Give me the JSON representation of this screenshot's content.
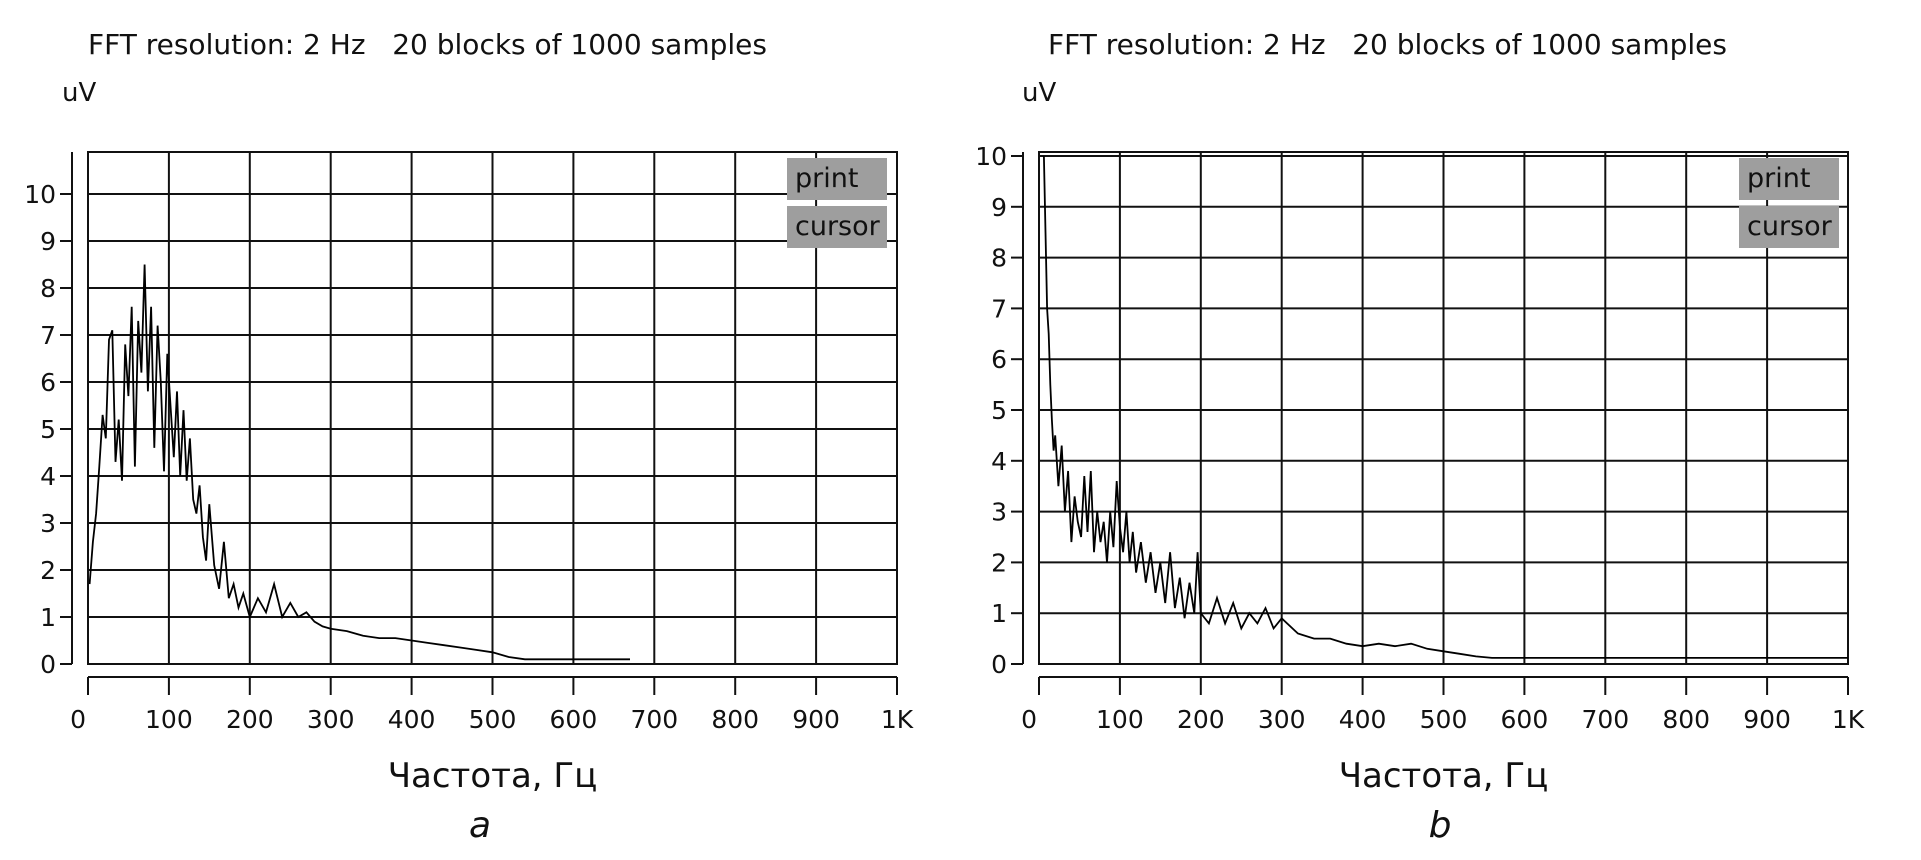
{
  "chart_data": [
    {
      "type": "line",
      "panel_label": "a",
      "header": "FFT resolution: 2 Hz   20 blocks of 1000 samples",
      "ylabel": "uV",
      "xlabel": "Частота, Гц",
      "xlim": [
        0,
        1000
      ],
      "ylim": [
        0,
        10.5
      ],
      "x_ticks": [
        0,
        100,
        200,
        300,
        400,
        500,
        600,
        700,
        800,
        900,
        1000
      ],
      "x_tick_labels": [
        "0",
        "100",
        "200",
        "300",
        "400",
        "500",
        "600",
        "700",
        "800",
        "900",
        "1K"
      ],
      "y_ticks": [
        0,
        1,
        2,
        3,
        4,
        5,
        6,
        7,
        8,
        9,
        10
      ],
      "y_tick_labels": [
        "0",
        "1",
        "2",
        "3",
        "4",
        "5",
        "6",
        "7",
        "8",
        "9",
        "10"
      ],
      "grid": true,
      "buttons": [
        "print",
        "cursor"
      ],
      "series": [
        {
          "x": [
            2,
            6,
            10,
            14,
            18,
            22,
            26,
            30,
            34,
            38,
            42,
            46,
            50,
            54,
            58,
            62,
            66,
            70,
            74,
            78,
            82,
            86,
            90,
            94,
            98,
            102,
            106,
            110,
            114,
            118,
            122,
            126,
            130,
            134,
            138,
            142,
            146,
            150,
            156,
            162,
            168,
            174,
            180,
            186,
            192,
            200,
            210,
            220,
            230,
            240,
            250,
            260,
            270,
            280,
            290,
            300,
            320,
            340,
            360,
            380,
            400,
            420,
            440,
            460,
            480,
            500,
            520,
            540,
            560,
            600,
            640,
            670
          ],
          "y": [
            1.7,
            2.6,
            3.2,
            4.2,
            5.3,
            4.8,
            6.9,
            7.1,
            4.3,
            5.2,
            3.9,
            6.8,
            5.7,
            7.6,
            4.2,
            7.3,
            6.2,
            8.5,
            5.8,
            7.6,
            4.6,
            7.2,
            6.0,
            4.1,
            6.6,
            5.5,
            4.4,
            5.8,
            4.0,
            5.4,
            3.9,
            4.8,
            3.5,
            3.2,
            3.8,
            2.7,
            2.2,
            3.4,
            2.1,
            1.6,
            2.6,
            1.4,
            1.7,
            1.2,
            1.5,
            1.0,
            1.4,
            1.1,
            1.7,
            1.0,
            1.3,
            1.0,
            1.1,
            0.9,
            0.8,
            0.75,
            0.7,
            0.6,
            0.55,
            0.55,
            0.5,
            0.45,
            0.4,
            0.35,
            0.3,
            0.25,
            0.15,
            0.1,
            0.1,
            0.1,
            0.1,
            0.1
          ]
        }
      ]
    },
    {
      "type": "line",
      "panel_label": "b",
      "header": "FFT resolution: 2 Hz   20 blocks of 1000 samples",
      "ylabel": "uV",
      "xlabel": "Частота, Гц",
      "xlim": [
        0,
        1000
      ],
      "ylim": [
        0,
        10
      ],
      "x_ticks": [
        0,
        100,
        200,
        300,
        400,
        500,
        600,
        700,
        800,
        900,
        1000
      ],
      "x_tick_labels": [
        "0",
        "100",
        "200",
        "300",
        "400",
        "500",
        "600",
        "700",
        "800",
        "900",
        "1K"
      ],
      "y_ticks": [
        0,
        1,
        2,
        3,
        4,
        5,
        6,
        7,
        8,
        9,
        10
      ],
      "y_tick_labels": [
        "0",
        "1",
        "2",
        "3",
        "4",
        "5",
        "6",
        "7",
        "8",
        "9",
        "10"
      ],
      "grid": true,
      "buttons": [
        "print",
        "cursor"
      ],
      "series": [
        {
          "x": [
            6,
            8,
            10,
            12,
            14,
            16,
            18,
            20,
            24,
            28,
            32,
            36,
            40,
            44,
            48,
            52,
            56,
            60,
            64,
            68,
            72,
            76,
            80,
            84,
            88,
            92,
            96,
            100,
            104,
            108,
            112,
            116,
            120,
            126,
            132,
            138,
            144,
            150,
            156,
            162,
            168,
            174,
            180,
            186,
            192,
            196,
            200,
            210,
            220,
            230,
            240,
            250,
            260,
            270,
            280,
            290,
            300,
            320,
            340,
            360,
            380,
            400,
            420,
            440,
            460,
            480,
            500,
            520,
            540,
            560,
            600,
            700,
            800,
            900,
            1000
          ],
          "y": [
            10.0,
            8.5,
            7.0,
            6.5,
            5.5,
            4.8,
            4.2,
            4.5,
            3.5,
            4.3,
            3.0,
            3.8,
            2.4,
            3.3,
            2.8,
            2.5,
            3.7,
            2.6,
            3.8,
            2.2,
            3.0,
            2.4,
            2.8,
            2.0,
            3.0,
            2.3,
            3.6,
            2.7,
            2.2,
            3.0,
            2.0,
            2.6,
            1.8,
            2.4,
            1.6,
            2.2,
            1.4,
            2.0,
            1.2,
            2.2,
            1.1,
            1.7,
            0.9,
            1.6,
            1.0,
            2.2,
            1.0,
            0.8,
            1.3,
            0.8,
            1.2,
            0.7,
            1.0,
            0.8,
            1.1,
            0.7,
            0.9,
            0.6,
            0.5,
            0.5,
            0.4,
            0.35,
            0.4,
            0.35,
            0.4,
            0.3,
            0.25,
            0.2,
            0.15,
            0.12,
            0.12,
            0.12,
            0.12,
            0.12,
            0.12
          ]
        }
      ]
    }
  ]
}
